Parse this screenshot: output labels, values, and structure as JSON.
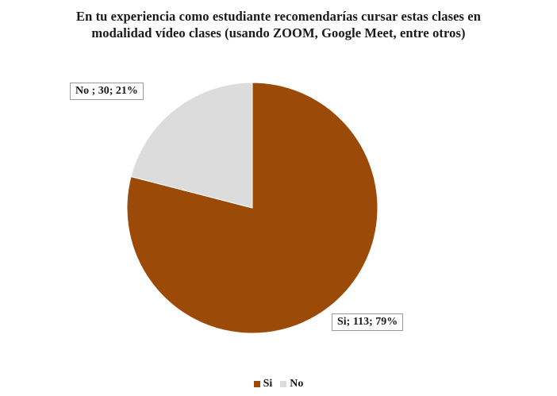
{
  "chart_data": {
    "type": "pie",
    "title_lines": [
      "En tu experiencia como estudiante recomendarías cursar estas clases en",
      "modalidad vídeo clases (usando ZOOM, Google Meet, entre otros)"
    ],
    "slices": [
      {
        "name": "Si",
        "value": 113,
        "percent": 79,
        "label": "Si; 113; 79%",
        "color": "#9c4a08"
      },
      {
        "name": "No",
        "value": 30,
        "percent": 21,
        "label": "No ; 30; 21%",
        "color": "#dcdcdc"
      }
    ],
    "legend": [
      "Si",
      "No"
    ],
    "legend_position": "bottom"
  }
}
